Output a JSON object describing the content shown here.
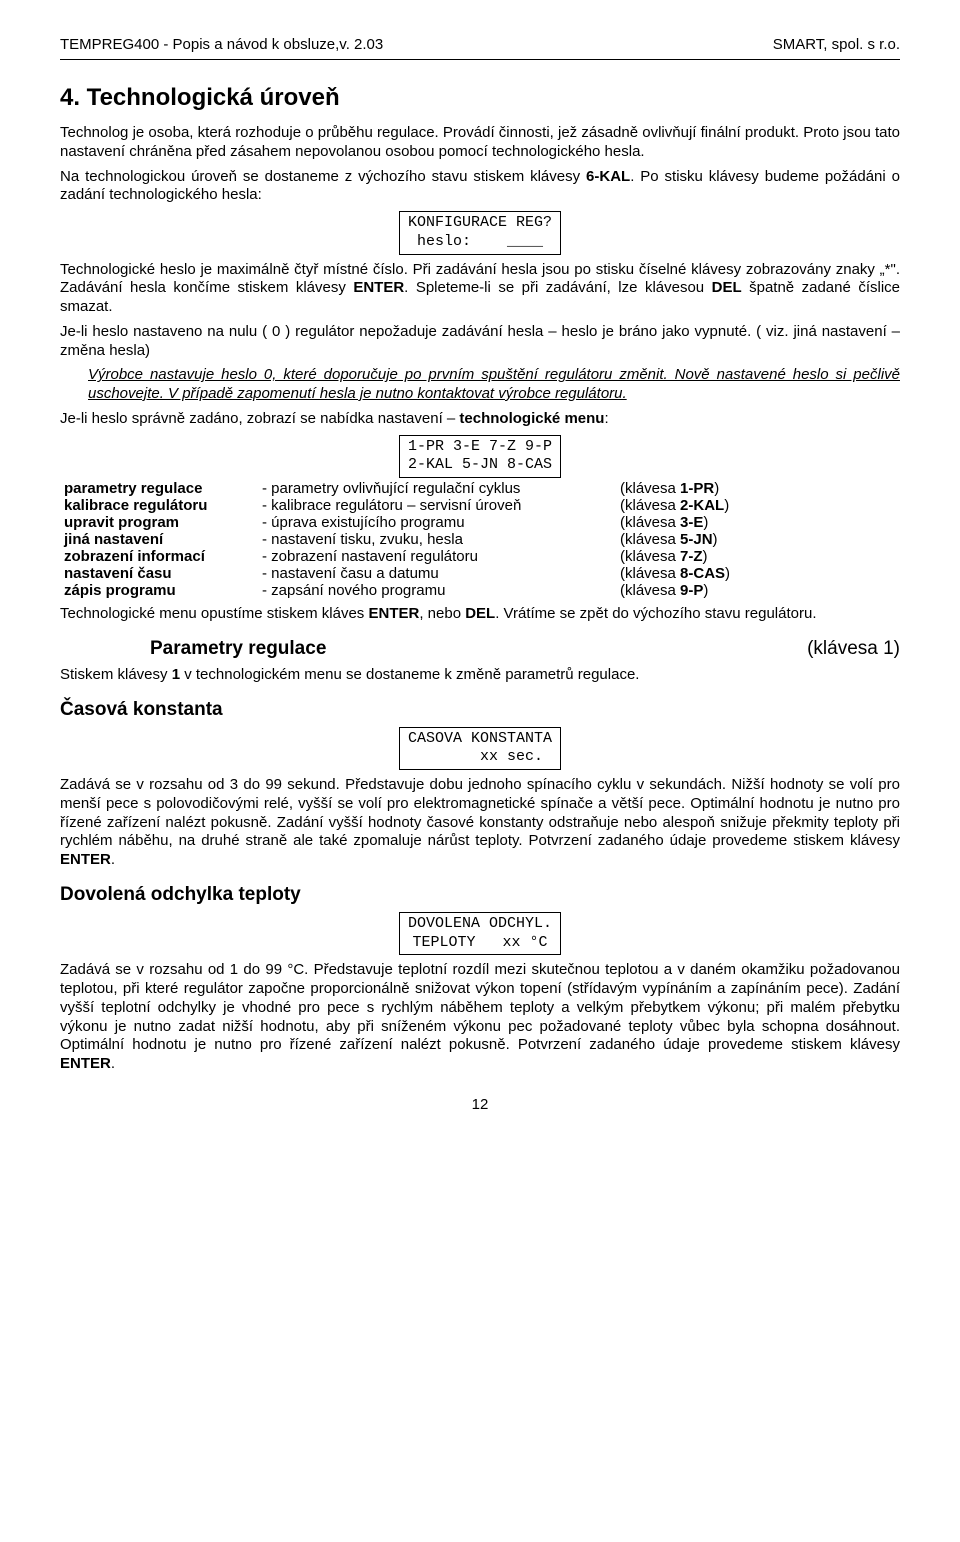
{
  "header": {
    "left": "TEMPREG400 - Popis a návod k obsluze,v. 2.03",
    "right": "SMART, spol. s r.o."
  },
  "section_num_title": "4. Technologická úroveň",
  "p1": "Technolog je osoba, která rozhoduje o průběhu regulace. Provádí činnosti, jež zásadně ovlivňují finální produkt. Proto jsou tato nastavení chráněna před zásahem nepovolanou osobou pomocí technologického hesla.",
  "p2_a": "Na technologickou úroveň se dostaneme z výchozího stavu stiskem klávesy ",
  "p2_b": "6-KAL",
  "p2_c": ". Po stisku klávesy budeme požádáni o zadání technologického hesla:",
  "box1": "KONFIGURACE REG?\nheslo:    ____",
  "p3_a": "Technologické heslo je maximálně čtyř místné číslo. Při zadávání hesla jsou po stisku číselné klávesy zobrazovány znaky „*\". Zadávání hesla končíme stiskem klávesy ",
  "p3_b": "ENTER",
  "p3_c": ". Spleteme-li se při zadávání, lze klávesou ",
  "p3_d": "DEL",
  "p3_e": " špatně zadané číslice smazat.",
  "p4": "Je-li heslo nastaveno na nulu ( 0 ) regulátor nepožaduje zadávání hesla – heslo je bráno jako vypnuté. ( viz. jiná nastavení – změna hesla)",
  "p5": "Výrobce nastavuje heslo 0, které doporučuje po prvním spuštění regulátoru změnit. Nově nastavené heslo si pečlivě uschovejte. V případě zapomenutí hesla je nutno kontaktovat výrobce regulátoru.",
  "p6_a": "Je-li heslo správně zadáno, zobrazí se nabídka nastavení – ",
  "p6_b": "technologické menu",
  "p6_c": ":",
  "box2": "1-PR 3-E 7-Z 9-P\n2-KAL 5-JN 8-CAS",
  "params_rows": [
    {
      "name": "parametry regulace",
      "desc": "- parametry ovlivňující regulační cyklus",
      "key": "(klávesa 1-PR)"
    },
    {
      "name": "kalibrace regulátoru",
      "desc": "- kalibrace regulátoru – servisní úroveň",
      "key": "(klávesa 2-KAL)"
    },
    {
      "name": "upravit program",
      "desc": "- úprava existujícího programu",
      "key": "(klávesa 3-E)"
    },
    {
      "name": "jiná nastavení",
      "desc": "- nastavení tisku, zvuku, hesla",
      "key": "(klávesa 5-JN)"
    },
    {
      "name": "zobrazení informací",
      "desc": "- zobrazení nastavení regulátoru",
      "key": "(klávesa 7-Z)"
    },
    {
      "name": "nastavení času",
      "desc": "- nastavení času a datumu",
      "key": "(klávesa 8-CAS)"
    },
    {
      "name": "zápis programu",
      "desc": "- zapsání nového programu",
      "key": "(klávesa 9-P)"
    }
  ],
  "p7_a": "Technologické menu opustíme stiskem kláves ",
  "p7_b": "ENTER",
  "p7_c": ", nebo ",
  "p7_d": "DEL",
  "p7_e": ". Vrátíme se zpět do výchozího stavu regulátoru.",
  "sub_heading": {
    "title": "Parametry regulace",
    "key": "(klávesa 1)"
  },
  "p8_a": "Stiskem klávesy ",
  "p8_b": "1",
  "p8_c": " v technologickém menu se dostaneme k změně parametrů regulace.",
  "sub2": "Časová konstanta",
  "box3": "CASOVA KONSTANTA\n       xx sec.",
  "p9_a": "Zadává se v rozsahu od 3 do 99 sekund. Představuje dobu jednoho spínacího cyklu v sekundách. Nižší hodnoty se volí pro menší pece s polovodičovými relé, vyšší se volí pro elektromagnetické spínače a větší pece. Optimální hodnotu je nutno pro řízené zařízení nalézt pokusně. Zadání vyšší hodnoty časové konstanty odstraňuje nebo alespoň snižuje překmity teploty při rychlém náběhu, na druhé straně ale také zpomaluje nárůst teploty. Potvrzení zadaného údaje provedeme stiskem klávesy ",
  "p9_b": "ENTER",
  "p9_c": ".",
  "sub3": "Dovolená odchylka teploty",
  "box4": "DOVOLENA ODCHYL.\nTEPLOTY   xx °C",
  "p10_a": "Zadává se v rozsahu od 1 do 99 °C. Představuje teplotní rozdíl mezi skutečnou teplotou a v daném okamžiku požadovanou teplotou, při které regulátor započne proporcionálně snižovat výkon topení (střídavým vypínáním a zapínáním pece). Zadání vyšší teplotní odchylky je vhodné pro pece s rychlým náběhem teploty a velkým přebytkem výkonu; při malém přebytku výkonu je nutno zadat nižší hodnotu, aby při sníženém výkonu pec požadované teploty vůbec byla schopna dosáhnout. Optimální hodnotu je nutno pro řízené zařízení nalézt pokusně. Potvrzení zadaného údaje provedeme stiskem klávesy ",
  "p10_b": "ENTER",
  "p10_c": ".",
  "page_number": "12"
}
